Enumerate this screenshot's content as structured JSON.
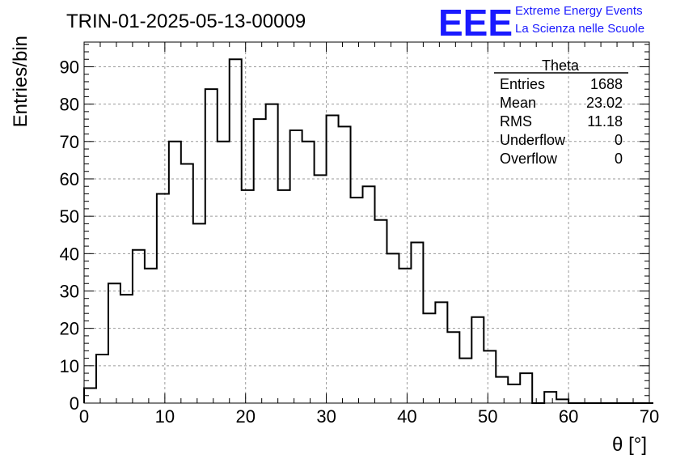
{
  "chart_data": {
    "type": "bar",
    "title": "TRIN-01-2025-05-13-00009",
    "xlabel": "θ [°]",
    "ylabel": "Entries/bin",
    "xlim": [
      0,
      70
    ],
    "ylim": [
      0,
      96.6
    ],
    "x_ticks": [
      0,
      10,
      20,
      30,
      40,
      50,
      60,
      70
    ],
    "y_ticks": [
      0,
      10,
      20,
      30,
      40,
      50,
      60,
      70,
      80,
      90
    ],
    "grid": true,
    "bin_width": 1.5,
    "bins_start": 0,
    "values": [
      4,
      13,
      32,
      29,
      41,
      36,
      56,
      70,
      64,
      48,
      84,
      70,
      92,
      57,
      76,
      80,
      57,
      73,
      70,
      61,
      77,
      74,
      55,
      58,
      49,
      40,
      36,
      43,
      24,
      27,
      19,
      12,
      23,
      14,
      7,
      5,
      8,
      0,
      3,
      1,
      0,
      0,
      0,
      0,
      0,
      0,
      0
    ],
    "stats_box": {
      "title": "Theta",
      "rows": [
        {
          "label": "Entries",
          "value": "1688"
        },
        {
          "label": "Mean",
          "value": "23.02"
        },
        {
          "label": "RMS",
          "value": "11.18"
        },
        {
          "label": "Underflow",
          "value": "0"
        },
        {
          "label": "Overflow",
          "value": "0"
        }
      ]
    },
    "colors": {
      "line": "#000000",
      "grid": "#9a9a9a",
      "logo": "#1a1aff"
    }
  },
  "logo": {
    "mark": "EEE",
    "line1": "Extreme Energy Events",
    "line2": "La Scienza nelle Scuole"
  }
}
